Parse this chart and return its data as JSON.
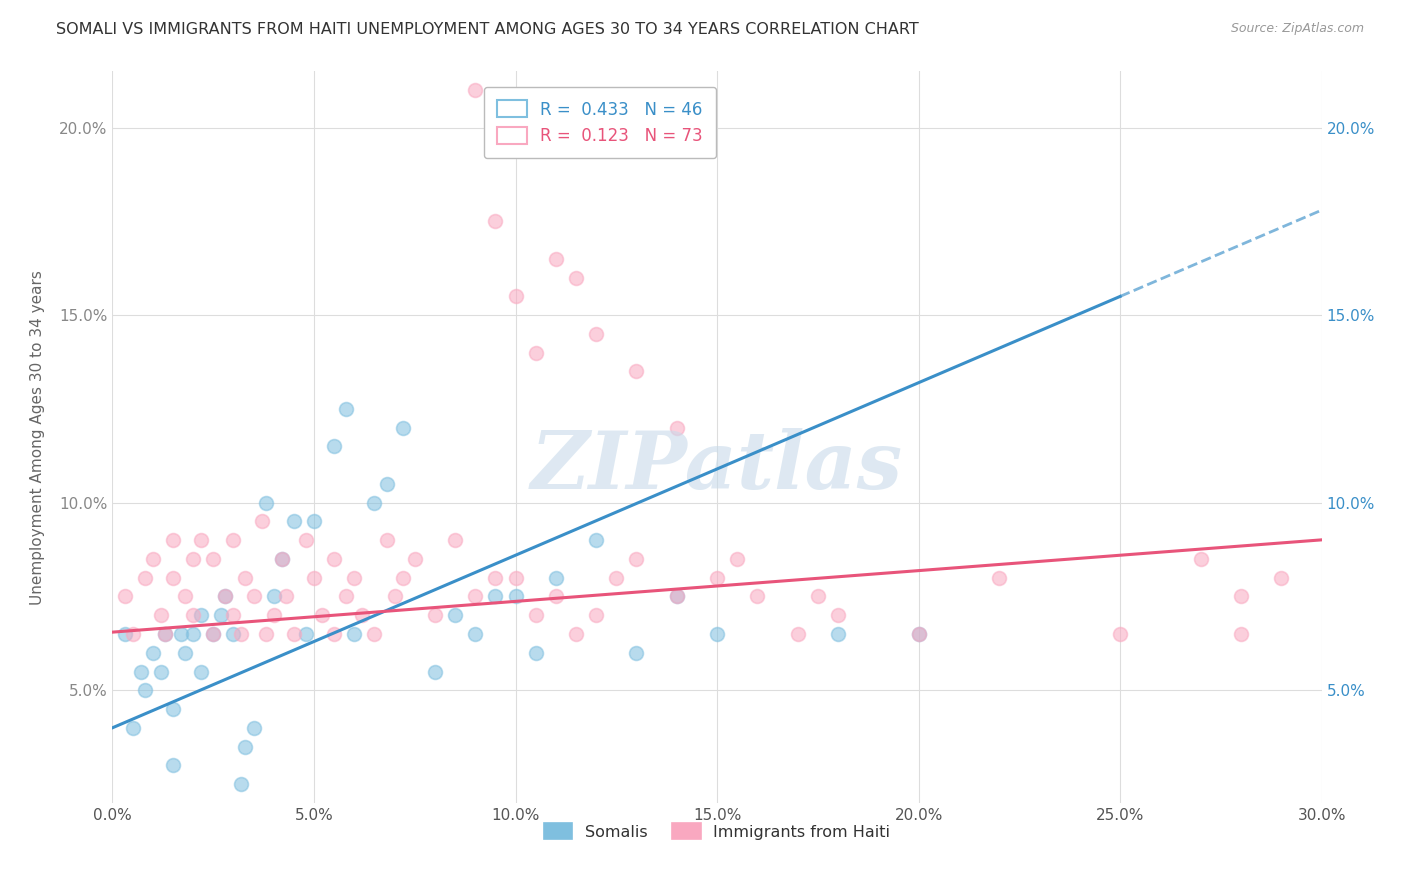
{
  "title": "SOMALI VS IMMIGRANTS FROM HAITI UNEMPLOYMENT AMONG AGES 30 TO 34 YEARS CORRELATION CHART",
  "source": "Source: ZipAtlas.com",
  "ylabel": "Unemployment Among Ages 30 to 34 years",
  "xlim": [
    0.0,
    0.3
  ],
  "ylim": [
    0.02,
    0.215
  ],
  "xticks": [
    0.0,
    0.05,
    0.1,
    0.15,
    0.2,
    0.25,
    0.3
  ],
  "yticks": [
    0.05,
    0.1,
    0.15,
    0.2
  ],
  "ytick_labels_left": [
    "5.0%",
    "10.0%",
    "15.0%",
    "20.0%"
  ],
  "ytick_labels_right": [
    "5.0%",
    "10.0%",
    "15.0%",
    "20.0%"
  ],
  "xtick_labels": [
    "0.0%",
    "5.0%",
    "10.0%",
    "15.0%",
    "20.0%",
    "25.0%",
    "30.0%"
  ],
  "somali_color": "#7fbfdf",
  "haiti_color": "#f9a8c0",
  "somali_R": 0.433,
  "somali_N": 46,
  "haiti_R": 0.123,
  "haiti_N": 73,
  "somali_line_color": "#3a8fc8",
  "haiti_line_color": "#e8547a",
  "watermark": "ZIPatlas",
  "watermark_color": "#c8daea",
  "background_color": "#ffffff",
  "grid_color": "#dddddd",
  "somali_x": [
    0.003,
    0.005,
    0.007,
    0.008,
    0.01,
    0.012,
    0.013,
    0.015,
    0.015,
    0.017,
    0.018,
    0.02,
    0.022,
    0.022,
    0.025,
    0.027,
    0.028,
    0.03,
    0.032,
    0.033,
    0.035,
    0.038,
    0.04,
    0.042,
    0.045,
    0.048,
    0.05,
    0.055,
    0.058,
    0.06,
    0.065,
    0.068,
    0.072,
    0.08,
    0.085,
    0.09,
    0.095,
    0.1,
    0.105,
    0.11,
    0.12,
    0.13,
    0.14,
    0.15,
    0.18,
    0.2
  ],
  "somali_y": [
    0.065,
    0.04,
    0.055,
    0.05,
    0.06,
    0.055,
    0.065,
    0.045,
    0.03,
    0.065,
    0.06,
    0.065,
    0.07,
    0.055,
    0.065,
    0.07,
    0.075,
    0.065,
    0.025,
    0.035,
    0.04,
    0.1,
    0.075,
    0.085,
    0.095,
    0.065,
    0.095,
    0.115,
    0.125,
    0.065,
    0.1,
    0.105,
    0.12,
    0.055,
    0.07,
    0.065,
    0.075,
    0.075,
    0.06,
    0.08,
    0.09,
    0.06,
    0.075,
    0.065,
    0.065,
    0.065
  ],
  "haiti_x": [
    0.003,
    0.005,
    0.008,
    0.01,
    0.012,
    0.013,
    0.015,
    0.015,
    0.018,
    0.02,
    0.02,
    0.022,
    0.025,
    0.025,
    0.028,
    0.03,
    0.03,
    0.032,
    0.033,
    0.035,
    0.037,
    0.038,
    0.04,
    0.042,
    0.043,
    0.045,
    0.048,
    0.05,
    0.052,
    0.055,
    0.055,
    0.058,
    0.06,
    0.062,
    0.065,
    0.068,
    0.07,
    0.072,
    0.075,
    0.08,
    0.085,
    0.09,
    0.095,
    0.1,
    0.105,
    0.11,
    0.115,
    0.12,
    0.125,
    0.13,
    0.14,
    0.15,
    0.16,
    0.17,
    0.18,
    0.2,
    0.22,
    0.25,
    0.27,
    0.28,
    0.29,
    0.09,
    0.095,
    0.1,
    0.105,
    0.11,
    0.115,
    0.12,
    0.13,
    0.14,
    0.155,
    0.175,
    0.28
  ],
  "haiti_y": [
    0.075,
    0.065,
    0.08,
    0.085,
    0.07,
    0.065,
    0.09,
    0.08,
    0.075,
    0.07,
    0.085,
    0.09,
    0.065,
    0.085,
    0.075,
    0.07,
    0.09,
    0.065,
    0.08,
    0.075,
    0.095,
    0.065,
    0.07,
    0.085,
    0.075,
    0.065,
    0.09,
    0.08,
    0.07,
    0.065,
    0.085,
    0.075,
    0.08,
    0.07,
    0.065,
    0.09,
    0.075,
    0.08,
    0.085,
    0.07,
    0.09,
    0.075,
    0.08,
    0.08,
    0.07,
    0.075,
    0.065,
    0.07,
    0.08,
    0.085,
    0.075,
    0.08,
    0.075,
    0.065,
    0.07,
    0.065,
    0.08,
    0.065,
    0.085,
    0.075,
    0.08,
    0.21,
    0.175,
    0.155,
    0.14,
    0.165,
    0.16,
    0.145,
    0.135,
    0.12,
    0.085,
    0.075,
    0.065
  ]
}
